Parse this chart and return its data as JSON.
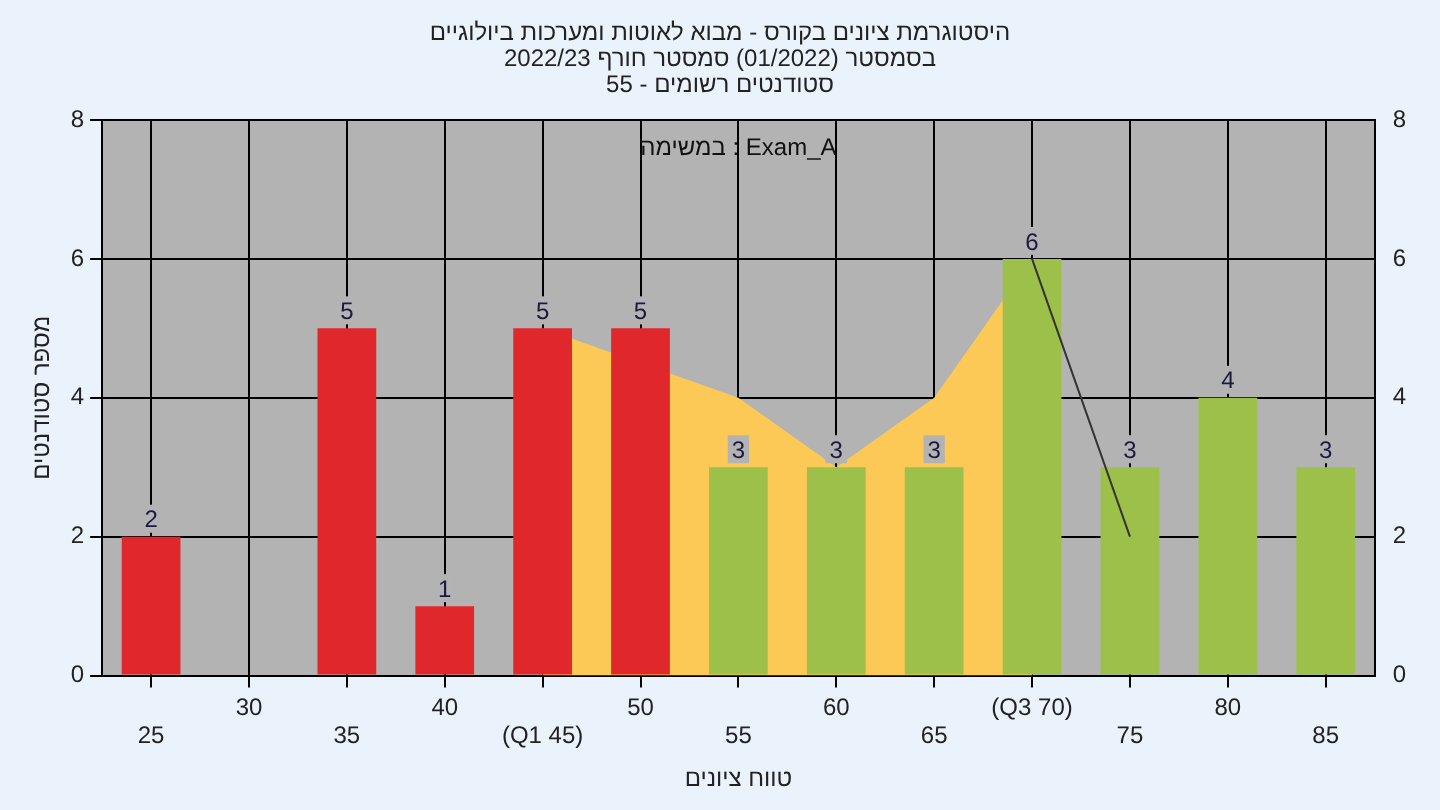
{
  "chart_data": {
    "type": "bar",
    "title": "היסטוגרמת ציונים בקורס - מבוא לאוטות ומערכות ביולוגיים",
    "subtitle": "בסמסטר  (01/2022)  סמסטר חורף 2022/23\nסטודנטים רשומים - 55",
    "xlabel": "טווח ציונים",
    "ylabel": "מספר סטודנטים",
    "annotations": [
      "במשימה : Exam_A"
    ],
    "categories": [
      "25",
      "30",
      "35",
      "40",
      "(Q1 45)",
      "50",
      "55",
      "60",
      "65",
      "(Q3 70)",
      "75",
      "80",
      "85"
    ],
    "series": [
      {
        "type": "area",
        "color": "#fcc957",
        "values": [
          null,
          null,
          null,
          null,
          5,
          null,
          4,
          3,
          4,
          6,
          null,
          null,
          null
        ]
      },
      {
        "type": "line",
        "color": "#333333",
        "values": [
          null,
          null,
          null,
          null,
          null,
          null,
          null,
          null,
          null,
          6,
          2,
          null,
          null
        ]
      },
      {
        "colors": [
          "#e0282c",
          "#e0282c",
          "#e0282c",
          "#e0282c",
          "#e0282c",
          "#e0282c",
          "#9cc04a",
          "#9cc04a",
          "#9cc04a",
          "#9cc04a",
          "#9cc04a",
          "#9cc04a",
          "#9cc04a"
        ],
        "values": [
          2,
          0,
          5,
          1,
          5,
          5,
          3,
          3,
          3,
          6,
          3,
          4,
          3
        ],
        "value_labels": [
          "2",
          null,
          "5",
          "1",
          "5",
          "5",
          "3",
          "3",
          "3",
          "6",
          "3",
          "4",
          "3"
        ]
      }
    ],
    "ylim": [
      0,
      8
    ],
    "yticks": [
      0,
      2,
      4,
      6,
      8
    ],
    "y2lim": [
      0,
      8
    ],
    "y2ticks": [
      0,
      2,
      4,
      6,
      8
    ],
    "grid": true,
    "legend": false
  }
}
